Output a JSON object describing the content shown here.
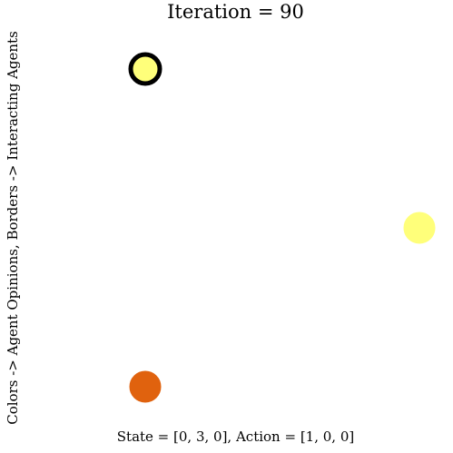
{
  "title": "Iteration = 90",
  "ylabel": "Colors -> Agent Opinions, Borders -> Interacting Agents",
  "footer": "State = [0, 3, 0], Action = [1, 0, 0]",
  "agents": [
    {
      "id": "agent-0",
      "opinion_color": "#FFFF7A",
      "border_color": "#000000",
      "interacting": true
    },
    {
      "id": "agent-1",
      "opinion_color": "#FFFF7A",
      "border_color": "#FFFF7A",
      "interacting": false
    },
    {
      "id": "agent-2",
      "opinion_color": "#E0620E",
      "border_color": "#E0620E",
      "interacting": false
    }
  ]
}
